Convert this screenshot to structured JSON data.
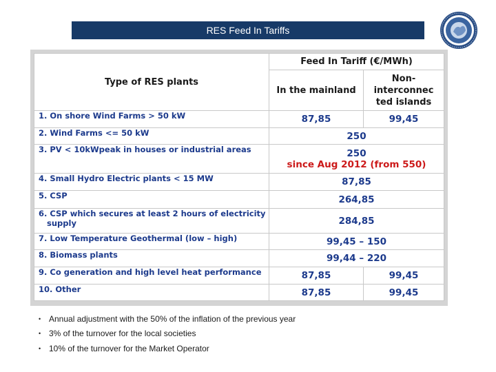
{
  "slide": {
    "title": "RES Feed In Tariffs"
  },
  "table": {
    "header": {
      "type_label": "Type of RES plants",
      "fit_label": "Feed In Tariff (€/MWh)",
      "mainland_label": "In the mainland",
      "islands_label_lines": [
        "Non-",
        "interconnec",
        "ted islands"
      ]
    },
    "rows": [
      {
        "plant_lines": [
          "1. On shore Wind Farms > 50 kW"
        ],
        "mainland": "87,85",
        "islands": "99,45"
      },
      {
        "plant_lines": [
          "2. Wind Farms <= 50 kW"
        ],
        "combined": "250"
      },
      {
        "plant_lines": [
          "3. PV < 10kWpeak in houses or industrial areas"
        ],
        "combined": "250",
        "combined_note": "since Aug 2012 (from 550)"
      },
      {
        "plant_lines": [
          "4. Small Hydro Electric plants < 15 MW"
        ],
        "combined": "87,85"
      },
      {
        "plant_lines": [
          "5. CSP"
        ],
        "combined": "264,85"
      },
      {
        "plant_lines": [
          "6. CSP which secures at least 2 hours of electricity",
          "supply"
        ],
        "combined": "284,85"
      },
      {
        "plant_lines": [
          "7. Low Temperature Geothermal (low – high)"
        ],
        "combined": "99,45 – 150"
      },
      {
        "plant_lines": [
          "8. Biomass plants"
        ],
        "combined": "99,44 – 220"
      },
      {
        "plant_lines": [
          "9. Co generation and high level heat performance"
        ],
        "mainland": "87,85",
        "islands": "99,45"
      },
      {
        "plant_lines": [
          "10. Other"
        ],
        "mainland": "87,85",
        "islands": "99,45"
      }
    ]
  },
  "notes": [
    "Annual adjustment with the 50% of the inflation of the previous year",
    "3% of the turnover for the local societies",
    "10% of the turnover for the Market Operator"
  ],
  "colors": {
    "title_bar": "#173a67",
    "value_text": "#1c3a8c",
    "highlight_text": "#cc1a1a"
  },
  "icons": {
    "logo": "ministry-seal-logo"
  }
}
